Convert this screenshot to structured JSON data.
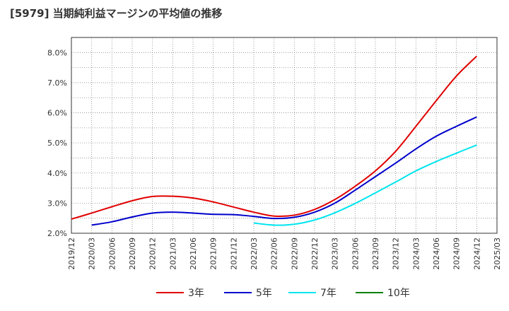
{
  "chart_data": {
    "type": "line",
    "title": "[5979]  当期純利益マージンの平均値の推移",
    "xlabel": "",
    "ylabel": "",
    "ylim": [
      2.0,
      8.5
    ],
    "y_ticks": [
      "2.0%",
      "3.0%",
      "4.0%",
      "5.0%",
      "6.0%",
      "7.0%",
      "8.0%"
    ],
    "y_tick_values": [
      2.0,
      3.0,
      4.0,
      5.0,
      6.0,
      7.0,
      8.0
    ],
    "x_ticks": [
      "2019/12",
      "2020/03",
      "2020/06",
      "2020/09",
      "2020/12",
      "2021/03",
      "2021/06",
      "2021/09",
      "2021/12",
      "2022/03",
      "2022/06",
      "2022/09",
      "2022/12",
      "2023/03",
      "2023/06",
      "2023/09",
      "2023/12",
      "2024/03",
      "2024/06",
      "2024/09",
      "2024/12",
      "2025/03"
    ],
    "grid": true,
    "legend_position": "bottom",
    "series": [
      {
        "name": "3年",
        "color": "#e00000",
        "values": [
          2.47,
          2.67,
          2.88,
          3.08,
          3.22,
          3.23,
          3.17,
          3.04,
          2.87,
          2.7,
          2.57,
          2.6,
          2.79,
          3.12,
          3.56,
          4.07,
          4.72,
          5.55,
          6.4,
          7.22,
          7.88,
          null
        ]
      },
      {
        "name": "5年",
        "color": "#0000cc",
        "values": [
          null,
          2.27,
          2.38,
          2.54,
          2.67,
          2.7,
          2.67,
          2.63,
          2.62,
          2.56,
          2.49,
          2.53,
          2.7,
          3.0,
          3.43,
          3.88,
          4.33,
          4.8,
          5.22,
          5.55,
          5.86,
          null
        ]
      },
      {
        "name": "7年",
        "color": "#00e5ee",
        "values": [
          null,
          null,
          null,
          null,
          null,
          null,
          null,
          null,
          null,
          2.34,
          2.27,
          2.3,
          2.44,
          2.68,
          2.99,
          3.34,
          3.7,
          4.07,
          4.38,
          4.66,
          4.93,
          null
        ]
      },
      {
        "name": "10年",
        "color": "#008000",
        "values": [
          null,
          null,
          null,
          null,
          null,
          null,
          null,
          null,
          null,
          null,
          null,
          null,
          null,
          null,
          null,
          null,
          null,
          null,
          null,
          null,
          null,
          null
        ]
      }
    ]
  }
}
